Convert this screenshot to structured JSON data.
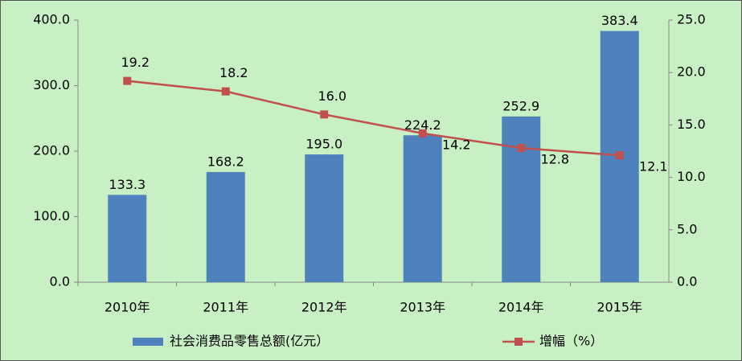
{
  "chart_data": {
    "type": "bar-line",
    "categories": [
      "2010年",
      "2011年",
      "2012年",
      "2013年",
      "2014年",
      "2015年"
    ],
    "series": [
      {
        "name": "社会消费品零售总额(亿元）",
        "type": "bar",
        "color": "#4f81bd",
        "values": [
          133.3,
          168.2,
          195.0,
          224.2,
          252.9,
          383.4
        ],
        "value_labels": [
          "133.3",
          "168.2",
          "195.0",
          "224.2",
          "252.9",
          "383.4"
        ]
      },
      {
        "name": "增幅（%）",
        "type": "line",
        "axis": "y2",
        "color": "#c0504d",
        "values": [
          19.2,
          18.2,
          16.0,
          14.2,
          12.8,
          12.1
        ],
        "value_labels": [
          "19.2",
          "18.2",
          "16.0",
          "14.2",
          "12.8",
          "12.1"
        ]
      }
    ],
    "ylim": [
      0,
      400
    ],
    "yticks": [
      {
        "value": 0,
        "label": "0.0"
      },
      {
        "value": 100,
        "label": "100.0"
      },
      {
        "value": 200,
        "label": "200.0"
      },
      {
        "value": 300,
        "label": "300.0"
      },
      {
        "value": 400,
        "label": "400.0"
      }
    ],
    "y2lim": [
      0,
      25
    ],
    "y2ticks": [
      {
        "value": 0,
        "label": "0.0"
      },
      {
        "value": 5,
        "label": "5.0"
      },
      {
        "value": 10,
        "label": "10.0"
      },
      {
        "value": 15,
        "label": "15.0"
      },
      {
        "value": 20,
        "label": "20.0"
      },
      {
        "value": 25,
        "label": "25.0"
      }
    ],
    "grid": false,
    "legend": "bottom"
  }
}
